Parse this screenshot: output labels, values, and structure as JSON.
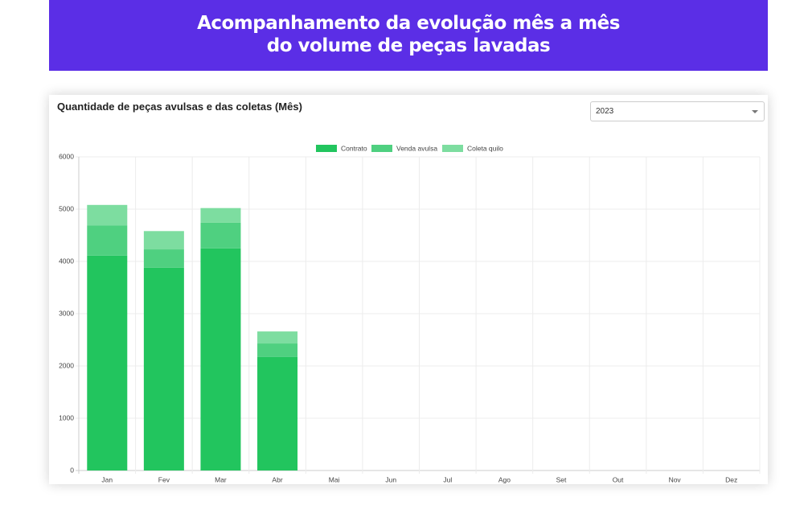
{
  "header": {
    "title": [
      "Acompanhamento da evolução mês a mês",
      "do volume de peças lavadas"
    ]
  },
  "select": "2023",
  "chart_data": {
    "type": "stacked-bar",
    "title": "Quantidade de peças avulsas e das coletas (Mês)",
    "categories": [
      "Jan",
      "Fev",
      "Mar",
      "Abr",
      "Mai",
      "Jun",
      "Jul",
      "Ago",
      "Set",
      "Out",
      "Nov",
      "Dez"
    ],
    "series": [
      {
        "name": "Contrato",
        "color": "#22c55e",
        "values": [
          4110,
          3880,
          4250,
          2170,
          null,
          null,
          null,
          null,
          null,
          null,
          null,
          null
        ]
      },
      {
        "name": "Venda avulsa",
        "color": "#4fd080",
        "values": [
          580,
          350,
          490,
          260,
          null,
          null,
          null,
          null,
          null,
          null,
          null,
          null
        ]
      },
      {
        "name": "Coleta quilo",
        "color": "#7ddda0",
        "values": [
          390,
          350,
          280,
          230,
          null,
          null,
          null,
          null,
          null,
          null,
          null,
          null
        ]
      }
    ],
    "ylim": [
      0,
      6000
    ],
    "yticks": [
      0,
      1000,
      2000,
      3000,
      4000,
      5000,
      6000
    ],
    "grid": true
  }
}
